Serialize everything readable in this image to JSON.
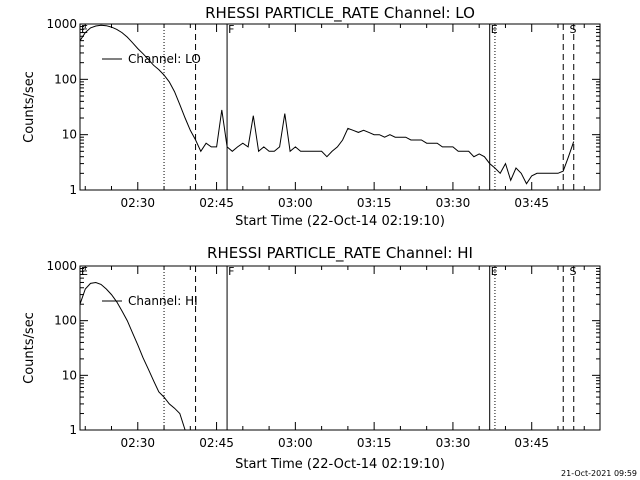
{
  "chart_data": [
    {
      "type": "line",
      "title": "RHESSI PARTICLE_RATE Channel: LO",
      "xlabel": "Start Time (22-Oct-14 02:19:10)",
      "ylabel": "Counts/sec",
      "yscale": "log",
      "ylim": [
        1,
        1000
      ],
      "xlim": [
        "02:19",
        "03:58"
      ],
      "x_ticks": [
        "02:30",
        "02:45",
        "03:00",
        "03:15",
        "03:30",
        "03:45"
      ],
      "y_ticks": [
        "1",
        "10",
        "100",
        "1000"
      ],
      "legend": "top-left",
      "series": [
        {
          "name": "Channel: LO",
          "x": [
            "02:19",
            "02:20",
            "02:21",
            "02:22",
            "02:23",
            "02:24",
            "02:25",
            "02:26",
            "02:27",
            "02:28",
            "02:29",
            "02:30",
            "02:31",
            "02:32",
            "02:33",
            "02:34",
            "02:35",
            "02:36",
            "02:37",
            "02:38",
            "02:39",
            "02:40",
            "02:41",
            "02:42",
            "02:43",
            "02:44",
            "02:45",
            "02:46",
            "02:47",
            "02:48",
            "02:49",
            "02:50",
            "02:51",
            "02:52",
            "02:53",
            "02:54",
            "02:55",
            "02:56",
            "02:57",
            "02:58",
            "02:59",
            "03:00",
            "03:01",
            "03:02",
            "03:03",
            "03:04",
            "03:05",
            "03:06",
            "03:07",
            "03:08",
            "03:09",
            "03:10",
            "03:11",
            "03:12",
            "03:13",
            "03:14",
            "03:15",
            "03:16",
            "03:17",
            "03:18",
            "03:19",
            "03:20",
            "03:21",
            "03:22",
            "03:23",
            "03:24",
            "03:25",
            "03:26",
            "03:27",
            "03:28",
            "03:29",
            "03:30",
            "03:31",
            "03:32",
            "03:33",
            "03:34",
            "03:35",
            "03:36",
            "03:37",
            "03:38",
            "03:39",
            "03:40",
            "03:41",
            "03:42",
            "03:43",
            "03:44",
            "03:45",
            "03:46",
            "03:47",
            "03:48",
            "03:49",
            "03:50",
            "03:51",
            "03:52",
            "03:53"
          ],
          "values": [
            500,
            700,
            850,
            920,
            950,
            930,
            880,
            800,
            700,
            580,
            460,
            360,
            290,
            230,
            180,
            150,
            120,
            90,
            60,
            35,
            20,
            12,
            8,
            5,
            7,
            6,
            6,
            28,
            6,
            5,
            6,
            7,
            6,
            22,
            5,
            6,
            5,
            5,
            6,
            24,
            5,
            6,
            5,
            5,
            5,
            5,
            5,
            4,
            5,
            6,
            8,
            13,
            12,
            11,
            12,
            11,
            10,
            10,
            9,
            10,
            9,
            9,
            9,
            8,
            8,
            8,
            7,
            7,
            7,
            6,
            6,
            6,
            5,
            5,
            5,
            4,
            4.5,
            4,
            3,
            2.5,
            2,
            3,
            1.5,
            2.5,
            2,
            1.3,
            1.8,
            2,
            2,
            2,
            2,
            2,
            2.2,
            4,
            7.5
          ]
        }
      ],
      "markers": [
        {
          "label": "E",
          "x": "02:19"
        },
        {
          "label": "F",
          "x": "02:47"
        },
        {
          "label": "E",
          "x": "03:37"
        },
        {
          "label": "S",
          "x": "03:52"
        }
      ]
    },
    {
      "type": "line",
      "title": "RHESSI PARTICLE_RATE Channel: HI",
      "xlabel": "Start Time (22-Oct-14 02:19:10)",
      "ylabel": "Counts/sec",
      "yscale": "log",
      "ylim": [
        1,
        1000
      ],
      "xlim": [
        "02:19",
        "03:58"
      ],
      "x_ticks": [
        "02:30",
        "02:45",
        "03:00",
        "03:15",
        "03:30",
        "03:45"
      ],
      "y_ticks": [
        "1",
        "10",
        "100",
        "1000"
      ],
      "legend": "top-left",
      "series": [
        {
          "name": "Channel: HI",
          "x": [
            "02:19",
            "02:20",
            "02:21",
            "02:22",
            "02:23",
            "02:24",
            "02:25",
            "02:26",
            "02:27",
            "02:28",
            "02:29",
            "02:30",
            "02:31",
            "02:32",
            "02:33",
            "02:34",
            "02:35",
            "02:36",
            "02:37",
            "02:38",
            "02:39"
          ],
          "values": [
            200,
            380,
            480,
            500,
            460,
            380,
            300,
            220,
            150,
            100,
            60,
            36,
            21,
            13,
            8,
            5,
            4,
            3,
            2.5,
            2,
            1
          ]
        }
      ],
      "markers": [
        {
          "label": "E",
          "x": "02:19"
        },
        {
          "label": "F",
          "x": "02:47"
        },
        {
          "label": "E",
          "x": "03:37"
        },
        {
          "label": "S",
          "x": "03:52"
        }
      ]
    }
  ],
  "footer": {
    "timestamp": "21-Oct-2021 09:59"
  }
}
